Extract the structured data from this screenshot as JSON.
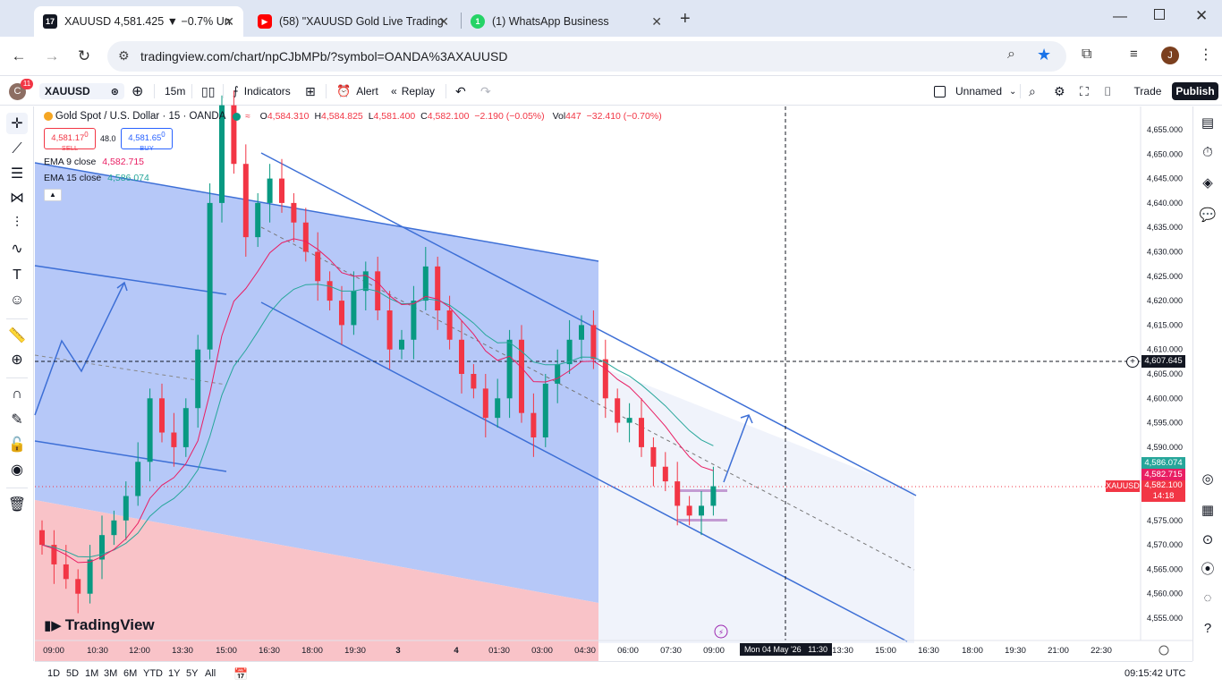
{
  "browser": {
    "tabs": [
      {
        "title": "XAUUSD 4,581.425 ▼ −0.7% Un",
        "favicon": "tradingview-icon",
        "active": true
      },
      {
        "title": "(58) \"XAUUSD Gold Live Trading",
        "favicon": "youtube-icon",
        "active": false
      },
      {
        "title": "(1) WhatsApp Business",
        "favicon": "whatsapp-icon",
        "active": false
      }
    ],
    "new_tab": "+",
    "url": "tradingview.com/chart/npCJbMPb/?symbol=OANDA%3AXAUUSD",
    "avatar_letter": "J"
  },
  "tv_top": {
    "avatar_letter": "C",
    "notif_count": "11",
    "symbol": "XAUUSD",
    "interval": "15m",
    "indicators_label": "Indicators",
    "alert_label": "Alert",
    "replay_label": "Replay",
    "layout_name": "Unnamed",
    "trade_label": "Trade",
    "publish_label": "Publish"
  },
  "legend": {
    "symbol_title": "Gold Spot / U.S. Dollar · 15 · OANDA",
    "o_label": "O",
    "o": "4,584.310",
    "h_label": "H",
    "h": "4,584.825",
    "l_label": "L",
    "l": "4,581.400",
    "c_label": "C",
    "c": "4,582.100",
    "change": "−2.190 (−0.05%)",
    "vol_label": "Vol",
    "vol": "447",
    "vol_change": "−32.410 (−0.70%)",
    "sell_price": "4,581.17",
    "sell_sup": "0",
    "sell_label": "SELL",
    "spread": "48.0",
    "buy_price": "4,581.65",
    "buy_sup": "0",
    "buy_label": "BUY",
    "ema9_label": "EMA 9 close",
    "ema9_value": "4,582.715",
    "ema15_label": "EMA 15 close",
    "ema15_value": "4,586.074"
  },
  "watermark": "TradingView",
  "price_axis": {
    "ticks": [
      "4,655.000",
      "4,650.000",
      "4,645.000",
      "4,640.000",
      "4,635.000",
      "4,630.000",
      "4,625.000",
      "4,620.000",
      "4,615.000",
      "4,610.000",
      "4,605.000",
      "4,600.000",
      "4,595.000",
      "4,590.000",
      "4,585.000",
      "4,580.000",
      "4,575.000",
      "4,570.000",
      "4,565.000",
      "4,560.000",
      "4,555.000"
    ],
    "crosshair_price": "4,607.645",
    "ema15_tag": "4,586.074",
    "ema9_tag": "4,582.715",
    "last_price_tag": "4,582.100",
    "countdown": "14:18",
    "symbol_tag": "XAUUSD"
  },
  "time_axis": {
    "ticks": [
      "09:00",
      "10:30",
      "12:00",
      "13:30",
      "15:00",
      "16:30",
      "18:00",
      "19:30",
      "3",
      "4",
      "01:30",
      "03:00",
      "04:30",
      "06:00",
      "07:30",
      "09:00",
      "13:30",
      "15:00",
      "16:30",
      "18:00",
      "19:30",
      "21:00",
      "22:30"
    ],
    "crosshair_time": "Mon 04 May '26   11:30"
  },
  "bottom": {
    "ranges": [
      "1D",
      "5D",
      "1M",
      "3M",
      "6M",
      "YTD",
      "1Y",
      "5Y",
      "All"
    ],
    "clock": "09:15:42 UTC"
  },
  "colors": {
    "bull": "#089981",
    "bear": "#f23645",
    "ema9": "#e91e63",
    "ema15": "#26a69a",
    "channel": "#3d6fd6",
    "accent": "#2962ff"
  },
  "chart_data": {
    "type": "candlestick",
    "symbol": "XAUUSD",
    "interval": "15",
    "ylim": [
      4550,
      4660
    ],
    "candles_approx_close": [
      4570,
      4566,
      4563,
      4560,
      4567,
      4572,
      4575,
      4580,
      4587,
      4600,
      4593,
      4590,
      4598,
      4610,
      4640,
      4660,
      4648,
      4633,
      4640,
      4645,
      4640,
      4636,
      4630,
      4624,
      4620,
      4615,
      4622,
      4626,
      4618,
      4610,
      4612,
      4620,
      4627,
      4618,
      4612,
      4605,
      4602,
      4596,
      4600,
      4612,
      4597,
      4592,
      4603,
      4607,
      4612,
      4615,
      4608,
      4600,
      4595,
      4596,
      4590,
      4586,
      4583,
      4578,
      4576,
      4578,
      4582
    ],
    "ema9_last": 4582.715,
    "ema15_last": 4586.074,
    "last": 4582.1
  }
}
